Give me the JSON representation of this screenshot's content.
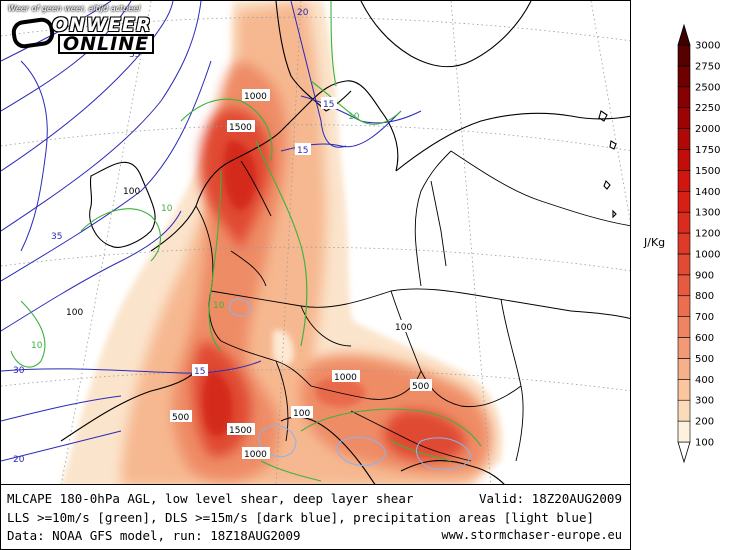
{
  "logo": {
    "tagline": "Weer of geen weer, altijd actueel",
    "word1": "ONWEER",
    "word2": "ONLINE"
  },
  "caption": {
    "line1": "MLCAPE 180-0hPa AGL, low level shear, deep layer shear",
    "valid": "Valid: 18Z20AUG2009",
    "line2": "LLS >=10m/s [green], DLS >=15m/s [dark blue], precipitation areas [light blue]",
    "line3": "Data: NOAA GFS model, run: 18Z18AUG2009",
    "site": "www.stormchaser-europe.eu"
  },
  "legend": {
    "unit": "J/Kg",
    "levels": [
      "100",
      "200",
      "300",
      "400",
      "500",
      "600",
      "700",
      "800",
      "900",
      "1000",
      "1200",
      "1300",
      "1400",
      "1500",
      "1750",
      "2000",
      "2250",
      "2500",
      "2750",
      "3000"
    ],
    "colors": [
      "#fdf1e0",
      "#fcdcb8",
      "#f9c6a0",
      "#f6b08a",
      "#f29a76",
      "#ee8462",
      "#ea6e50",
      "#e65a40",
      "#e24a34",
      "#de3a28",
      "#da2c1e",
      "#d62016",
      "#d0160e",
      "#c20e08",
      "#b00806",
      "#9c0404",
      "#860202",
      "#6e0000",
      "#560000",
      "#3e0000"
    ]
  },
  "map_labels": {
    "cape": [
      "1000",
      "1500",
      "100",
      "100",
      "500",
      "1500",
      "1000",
      "100",
      "1000",
      "500",
      "100"
    ],
    "shear": [
      "20",
      "15",
      "10",
      "15",
      "35",
      "10",
      "35",
      "10",
      "15",
      "10",
      "30",
      "20"
    ]
  },
  "colors": {
    "lls_contour": "#3cb33c",
    "dls_contour": "#2a2ab8",
    "precip_contour": "#8ab4f0",
    "coast": "#000000"
  }
}
